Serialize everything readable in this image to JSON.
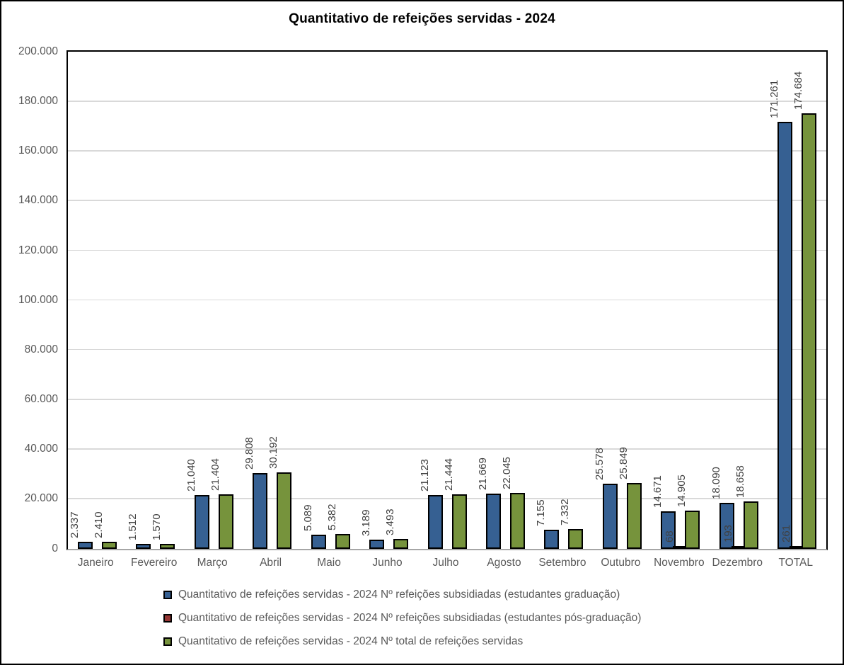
{
  "chart_data": {
    "type": "bar",
    "title": "Quantitativo de refeições servidas - 2024",
    "categories": [
      "Janeiro",
      "Fevereiro",
      "Março",
      "Abril",
      "Maio",
      "Junho",
      "Julho",
      "Agosto",
      "Setembro",
      "Outubro",
      "Novembro",
      "Dezembro",
      "TOTAL"
    ],
    "series": [
      {
        "name": "Quantitativo de refeições servidas - 2024 Nº refeições subsidiadas (estudantes graduação)",
        "color": "#366092",
        "values": [
          2337,
          1512,
          21040,
          29808,
          5089,
          3189,
          21123,
          21669,
          7155,
          25578,
          14671,
          18090,
          171261
        ],
        "labels": [
          "2.337",
          "1.512",
          "21.040",
          "29.808",
          "5.089",
          "3.189",
          "21.123",
          "21.669",
          "7.155",
          "25.578",
          "14.671",
          "18.090",
          "171.261"
        ]
      },
      {
        "name": "Quantitativo de refeições servidas - 2024 Nº refeições subsidiadas (estudantes pós-graduação)",
        "color": "#963634",
        "values": [
          0,
          0,
          0,
          0,
          0,
          0,
          0,
          0,
          0,
          0,
          68,
          193,
          261
        ],
        "labels": [
          "",
          "",
          "",
          "",
          "",
          "",
          "",
          "",
          "",
          "",
          "68",
          "193",
          "261"
        ]
      },
      {
        "name": "Quantitativo de refeições servidas - 2024 Nº total de refeições servidas",
        "color": "#76933C",
        "values": [
          2410,
          1570,
          21404,
          30192,
          5382,
          3493,
          21444,
          22045,
          7332,
          25849,
          14905,
          18658,
          174684
        ],
        "labels": [
          "2.410",
          "1.570",
          "21.404",
          "30.192",
          "5.382",
          "3.493",
          "21.444",
          "22.045",
          "7.332",
          "25.849",
          "14.905",
          "18.658",
          "174.684"
        ]
      }
    ],
    "ylim": [
      0,
      200000
    ],
    "ytick_step": 20000,
    "ytick_labels": [
      "0",
      "20.000",
      "40.000",
      "60.000",
      "80.000",
      "100.000",
      "120.000",
      "140.000",
      "160.000",
      "180.000",
      "200.000"
    ],
    "grid": true,
    "legend_position": "bottom",
    "bar_border_color": "#000000"
  },
  "style": {
    "outer_border": "#000000",
    "plot_border": "#000000",
    "axis_line": "#A6A6A6",
    "gridline": "#D9D9D9",
    "axis_text": "#595959",
    "legend_text": "#595959",
    "data_label_text": "#404040",
    "title_text": "#000000",
    "background": "#ffffff"
  }
}
